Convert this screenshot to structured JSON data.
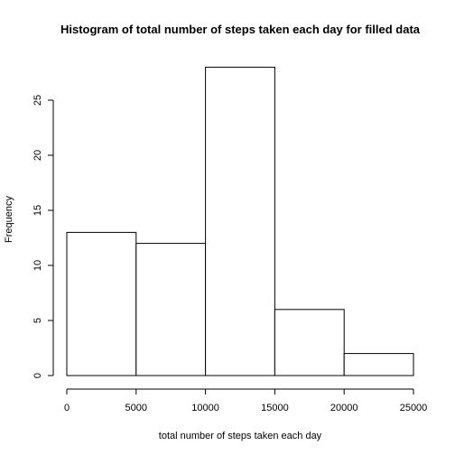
{
  "chart_data": {
    "type": "bar",
    "title": "Histogram of total number of steps taken each day for filled data",
    "xlabel": "total number of steps taken each day",
    "ylabel": "Frequency",
    "bins": [
      {
        "from": 0,
        "to": 5000,
        "count": 13
      },
      {
        "from": 5000,
        "to": 10000,
        "count": 12
      },
      {
        "from": 10000,
        "to": 15000,
        "count": 28
      },
      {
        "from": 15000,
        "to": 20000,
        "count": 6
      },
      {
        "from": 20000,
        "to": 25000,
        "count": 2
      }
    ],
    "xticks": [
      0,
      5000,
      10000,
      15000,
      20000,
      25000
    ],
    "yticks": [
      0,
      5,
      10,
      15,
      20,
      25
    ],
    "xlim": [
      0,
      25000
    ],
    "ylim": [
      0,
      28
    ],
    "bar_fill": "#ffffff",
    "bar_stroke": "#000000"
  }
}
